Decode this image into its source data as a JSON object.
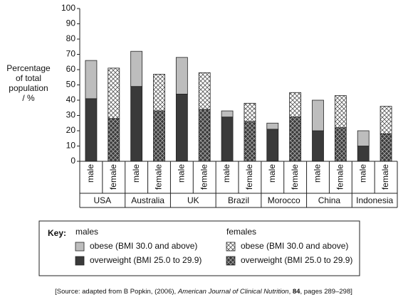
{
  "chart_data": {
    "type": "stacked_bar",
    "ylabel": [
      "Percentage",
      "of total",
      "population",
      "/ %"
    ],
    "ylim": [
      0,
      100
    ],
    "yticks": [
      0,
      10,
      20,
      30,
      40,
      50,
      60,
      70,
      80,
      90,
      100
    ],
    "groups": [
      "USA",
      "Australia",
      "UK",
      "Brazil",
      "Morocco",
      "China",
      "Indonesia"
    ],
    "categories": [
      "male",
      "female",
      "male",
      "female",
      "male",
      "female",
      "male",
      "female",
      "male",
      "female",
      "male",
      "female",
      "male",
      "female"
    ],
    "legend": {
      "label": "Key:",
      "series_groups": [
        {
          "name": "males",
          "series": [
            {
              "name": "obese (BMI 30.0 and above)",
              "color": "#bdbdbd",
              "hatch": false,
              "values": [
                25,
                null,
                23,
                null,
                24,
                null,
                4,
                null,
                4,
                null,
                20,
                null,
                10,
                null
              ]
            },
            {
              "name": "overweight (BMI 25.0 to 29.9)",
              "color": "#3a3a3a",
              "hatch": false,
              "values": [
                41,
                null,
                49,
                null,
                44,
                null,
                29,
                null,
                21,
                null,
                20,
                null,
                10,
                null
              ]
            }
          ]
        },
        {
          "name": "females",
          "series": [
            {
              "name": "obese (BMI 30.0 and above)",
              "color": "#ffffff",
              "hatch": true,
              "values": [
                null,
                33,
                null,
                24,
                null,
                24,
                null,
                12,
                null,
                16,
                null,
                21,
                null,
                18
              ]
            },
            {
              "name": "overweight (BMI 25.0 to 29.9)",
              "color": "#3a3a3a",
              "hatch": true,
              "values": [
                null,
                28,
                null,
                33,
                null,
                34,
                null,
                26,
                null,
                29,
                null,
                22,
                null,
                18
              ]
            }
          ]
        }
      ]
    },
    "source": [
      "[Source: adapted from B Popkin, (2006), ",
      "American Journal of Clinical Nutrition",
      ", ",
      "84",
      ", pages 289–298]"
    ]
  }
}
